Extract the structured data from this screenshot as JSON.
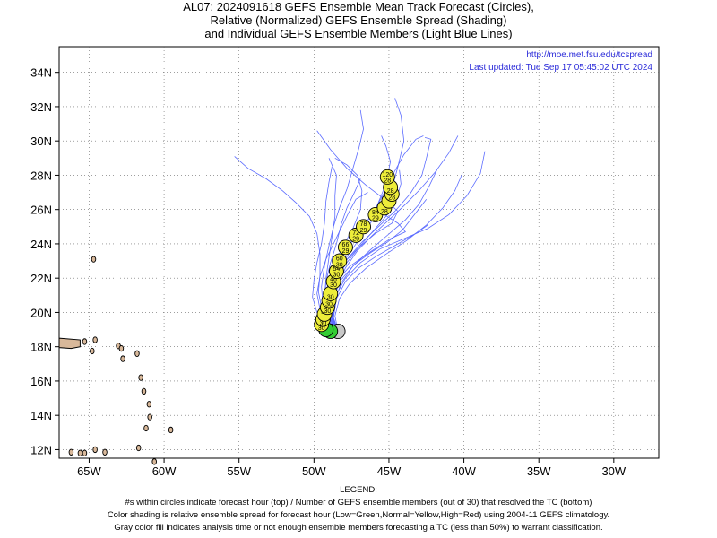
{
  "titles": {
    "line1": "AL07: 2024091618 GEFS Ensemble Mean Track Forecast (Circles),",
    "line2": "Relative (Normalized) GEFS Ensemble Spread (Shading)",
    "line3": "and Individual GEFS Ensemble Members (Light Blue Lines)"
  },
  "info": {
    "url": "http://moe.met.fsu.edu/tcspread",
    "updated": "Last updated: Tue Sep 17 05:45:02 UTC 2024"
  },
  "legend": {
    "heading": "LEGEND:",
    "line1": "#s within circles indicate forecast hour (top) / Number of GEFS ensemble members (out of 30) that resolved the TC (bottom)",
    "line2": "Color shading is relative ensemble spread for forecast hour (Low=Green,Normal=Yellow,High=Red) using 2004-11 GEFS climatology.",
    "line3": "Gray color fill indicates analysis time or not enough ensemble members forecasting a TC (less than 50%) to warrant classification."
  },
  "colors": {
    "low_spread": "#33cc33",
    "normal_spread": "#eded3a",
    "analysis_gray": "#c8c8c8",
    "member_lines": "#5b6bff",
    "land": "#d8b89a"
  },
  "chart_data": {
    "type": "scatter",
    "xlim": [
      -67,
      -27
    ],
    "ylim": [
      11.5,
      35.5
    ],
    "x_ticks": [
      -65,
      -60,
      -55,
      -50,
      -45,
      -40,
      -35,
      -30
    ],
    "x_tick_labels": [
      "65W",
      "60W",
      "55W",
      "50W",
      "45W",
      "40W",
      "35W",
      "30W"
    ],
    "y_ticks": [
      12,
      14,
      16,
      18,
      20,
      22,
      24,
      26,
      28,
      30,
      32,
      34
    ],
    "y_tick_labels": [
      "12N",
      "14N",
      "16N",
      "18N",
      "20N",
      "22N",
      "24N",
      "26N",
      "28N",
      "30N",
      "32N",
      "34N"
    ],
    "mean_track": [
      {
        "hour": "",
        "members": "",
        "lon": -48.4,
        "lat": 18.9,
        "shade": "gray"
      },
      {
        "hour": "",
        "members": "",
        "lon": -48.9,
        "lat": 18.9,
        "shade": "green"
      },
      {
        "hour": "",
        "members": "",
        "lon": -49.2,
        "lat": 19.0,
        "shade": "green"
      },
      {
        "hour": "",
        "members": "30",
        "lon": -49.5,
        "lat": 19.3,
        "shade": "yellow"
      },
      {
        "hour": "",
        "members": "30",
        "lon": -49.4,
        "lat": 19.6,
        "shade": "yellow"
      },
      {
        "hour": "36",
        "members": "",
        "lon": -49.3,
        "lat": 19.9,
        "shade": "yellow"
      },
      {
        "hour": "",
        "members": "30",
        "lon": -49.1,
        "lat": 20.3,
        "shade": "yellow"
      },
      {
        "hour": "",
        "members": "30",
        "lon": -49.0,
        "lat": 20.7,
        "shade": "yellow"
      },
      {
        "hour": "",
        "members": "30",
        "lon": -48.9,
        "lat": 21.1,
        "shade": "yellow"
      },
      {
        "hour": "48",
        "members": "30",
        "lon": -48.7,
        "lat": 21.8,
        "shade": "yellow"
      },
      {
        "hour": "54",
        "members": "30",
        "lon": -48.5,
        "lat": 22.4,
        "shade": "yellow"
      },
      {
        "hour": "60",
        "members": "30",
        "lon": -48.3,
        "lat": 23.0,
        "shade": "yellow"
      },
      {
        "hour": "66",
        "members": "29",
        "lon": -47.9,
        "lat": 23.8,
        "shade": "yellow"
      },
      {
        "hour": "72",
        "members": "29",
        "lon": -47.2,
        "lat": 24.5,
        "shade": "yellow"
      },
      {
        "hour": "78",
        "members": "29",
        "lon": -46.7,
        "lat": 25.0,
        "shade": "yellow"
      },
      {
        "hour": "84",
        "members": "29",
        "lon": -45.9,
        "lat": 25.7,
        "shade": "yellow"
      },
      {
        "hour": "",
        "members": "28",
        "lon": -45.3,
        "lat": 26.1,
        "shade": "yellow"
      },
      {
        "hour": "",
        "members": "",
        "lon": -45.0,
        "lat": 26.5,
        "shade": "yellow"
      },
      {
        "hour": "",
        "members": "28",
        "lon": -44.8,
        "lat": 26.9,
        "shade": "yellow"
      },
      {
        "hour": "",
        "members": "28",
        "lon": -44.9,
        "lat": 27.3,
        "shade": "yellow"
      },
      {
        "hour": "120",
        "members": "28",
        "lon": -45.1,
        "lat": 27.9,
        "shade": "yellow"
      }
    ],
    "ensemble_members": [
      [
        [
          -48.4,
          18.9
        ],
        [
          -48.9,
          19.6
        ],
        [
          -49.1,
          20.6
        ],
        [
          -48.9,
          21.8
        ],
        [
          -48.4,
          23.0
        ],
        [
          -47.5,
          24.1
        ],
        [
          -46.6,
          25.1
        ],
        [
          -45.8,
          26.2
        ],
        [
          -45.2,
          27.5
        ],
        [
          -44.9,
          28.8
        ],
        [
          -45.2,
          29.7
        ],
        [
          -45.5,
          30.3
        ]
      ],
      [
        [
          -48.4,
          18.9
        ],
        [
          -49.0,
          19.7
        ],
        [
          -49.3,
          20.8
        ],
        [
          -49.2,
          22.0
        ],
        [
          -49.0,
          23.2
        ],
        [
          -48.8,
          24.4
        ],
        [
          -48.6,
          25.6
        ],
        [
          -48.6,
          26.8
        ],
        [
          -48.5,
          28.0
        ],
        [
          -49.0,
          29.0
        ]
      ],
      [
        [
          -48.4,
          18.9
        ],
        [
          -48.8,
          19.6
        ],
        [
          -48.9,
          20.7
        ],
        [
          -48.6,
          21.9
        ],
        [
          -48.0,
          23.0
        ],
        [
          -47.2,
          24.0
        ],
        [
          -46.4,
          25.0
        ],
        [
          -45.6,
          26.0
        ],
        [
          -44.8,
          27.2
        ],
        [
          -44.4,
          28.5
        ],
        [
          -44.0,
          30.0
        ],
        [
          -44.2,
          31.5
        ],
        [
          -44.6,
          32.5
        ]
      ],
      [
        [
          -48.4,
          18.9
        ],
        [
          -49.1,
          19.5
        ],
        [
          -49.5,
          20.3
        ],
        [
          -49.7,
          21.2
        ],
        [
          -49.6,
          22.2
        ],
        [
          -49.6,
          23.4
        ],
        [
          -49.8,
          24.6
        ],
        [
          -50.3,
          25.6
        ],
        [
          -51.2,
          26.4
        ],
        [
          -52.1,
          27.1
        ],
        [
          -53.2,
          27.8
        ],
        [
          -54.4,
          28.4
        ],
        [
          -55.3,
          29.1
        ]
      ],
      [
        [
          -48.4,
          18.9
        ],
        [
          -48.7,
          19.7
        ],
        [
          -48.5,
          20.8
        ],
        [
          -47.9,
          21.8
        ],
        [
          -47.0,
          22.6
        ],
        [
          -45.8,
          23.3
        ],
        [
          -44.6,
          23.9
        ],
        [
          -43.4,
          24.5
        ],
        [
          -42.4,
          25.1
        ]
      ],
      [
        [
          -48.4,
          18.9
        ],
        [
          -48.8,
          19.8
        ],
        [
          -48.6,
          20.9
        ],
        [
          -47.9,
          22.0
        ],
        [
          -46.9,
          22.9
        ],
        [
          -45.6,
          23.7
        ],
        [
          -44.0,
          24.3
        ],
        [
          -42.4,
          24.9
        ],
        [
          -41.0,
          25.7
        ],
        [
          -39.8,
          26.8
        ],
        [
          -38.9,
          28.1
        ],
        [
          -38.6,
          29.4
        ]
      ],
      [
        [
          -48.4,
          18.9
        ],
        [
          -48.7,
          19.7
        ],
        [
          -48.6,
          20.7
        ],
        [
          -48.2,
          21.7
        ],
        [
          -47.4,
          22.7
        ],
        [
          -46.3,
          23.6
        ],
        [
          -45.1,
          24.5
        ],
        [
          -43.9,
          25.4
        ],
        [
          -43.0,
          26.3
        ],
        [
          -42.3,
          27.4
        ],
        [
          -41.8,
          28.3
        ]
      ],
      [
        [
          -48.4,
          18.9
        ],
        [
          -49.0,
          19.6
        ],
        [
          -49.2,
          20.6
        ],
        [
          -49.0,
          21.7
        ],
        [
          -48.5,
          22.8
        ],
        [
          -47.7,
          23.9
        ],
        [
          -46.8,
          24.9
        ],
        [
          -46.0,
          25.9
        ],
        [
          -45.3,
          27.0
        ],
        [
          -44.7,
          28.1
        ],
        [
          -44.0,
          29.2
        ],
        [
          -43.2,
          30.1
        ],
        [
          -42.7,
          30.3
        ]
      ],
      [
        [
          -48.4,
          18.9
        ],
        [
          -48.9,
          19.6
        ],
        [
          -49.2,
          20.5
        ],
        [
          -49.1,
          21.6
        ],
        [
          -48.7,
          22.7
        ],
        [
          -48.1,
          23.8
        ],
        [
          -47.4,
          24.9
        ],
        [
          -46.9,
          26.0
        ],
        [
          -46.8,
          27.1
        ],
        [
          -47.1,
          28.0
        ],
        [
          -47.8,
          28.6
        ],
        [
          -48.6,
          29.0
        ]
      ],
      [
        [
          -48.4,
          18.9
        ],
        [
          -49.2,
          19.4
        ],
        [
          -49.8,
          20.0
        ],
        [
          -50.1,
          20.9
        ],
        [
          -50.0,
          21.9
        ],
        [
          -49.8,
          22.9
        ],
        [
          -49.5,
          24.0
        ],
        [
          -49.3,
          25.2
        ],
        [
          -49.2,
          26.5
        ],
        [
          -49.0,
          27.6
        ],
        [
          -48.8,
          28.5
        ]
      ],
      [
        [
          -48.4,
          18.9
        ],
        [
          -48.8,
          19.8
        ],
        [
          -48.7,
          20.9
        ],
        [
          -48.2,
          21.9
        ],
        [
          -47.3,
          22.8
        ],
        [
          -46.2,
          23.5
        ],
        [
          -45.1,
          24.1
        ],
        [
          -44.1,
          24.8
        ],
        [
          -43.3,
          25.7
        ],
        [
          -42.5,
          26.6
        ]
      ],
      [
        [
          -48.4,
          18.9
        ],
        [
          -48.9,
          19.7
        ],
        [
          -49.0,
          20.7
        ],
        [
          -48.7,
          21.8
        ],
        [
          -48.0,
          22.9
        ],
        [
          -47.0,
          23.8
        ],
        [
          -45.9,
          24.6
        ],
        [
          -44.8,
          25.2
        ],
        [
          -44.4,
          25.9
        ],
        [
          -45.3,
          26.6
        ],
        [
          -46.5,
          27.4
        ],
        [
          -47.8,
          28.4
        ],
        [
          -48.9,
          29.5
        ],
        [
          -49.8,
          30.6
        ]
      ],
      [
        [
          -48.4,
          18.9
        ],
        [
          -48.8,
          19.7
        ],
        [
          -48.9,
          20.8
        ],
        [
          -48.5,
          21.8
        ],
        [
          -47.6,
          22.7
        ],
        [
          -46.3,
          23.5
        ],
        [
          -44.9,
          24.3
        ],
        [
          -43.9,
          24.7
        ],
        [
          -44.4,
          25.2
        ],
        [
          -45.3,
          25.7
        ]
      ],
      [
        [
          -48.4,
          18.9
        ],
        [
          -49.0,
          19.5
        ],
        [
          -49.4,
          20.4
        ],
        [
          -49.5,
          21.5
        ],
        [
          -49.3,
          22.7
        ],
        [
          -49.0,
          23.9
        ],
        [
          -48.7,
          25.0
        ],
        [
          -48.3,
          26.1
        ],
        [
          -47.8,
          27.2
        ],
        [
          -47.4,
          28.4
        ],
        [
          -47.0,
          29.6
        ],
        [
          -46.7,
          30.7
        ],
        [
          -46.9,
          31.8
        ]
      ],
      [
        [
          -48.4,
          18.9
        ],
        [
          -48.7,
          19.6
        ],
        [
          -48.7,
          20.6
        ],
        [
          -48.4,
          21.6
        ],
        [
          -47.9,
          22.6
        ],
        [
          -47.1,
          23.6
        ],
        [
          -46.1,
          24.5
        ],
        [
          -45.0,
          25.4
        ],
        [
          -43.9,
          26.3
        ],
        [
          -42.9,
          27.2
        ],
        [
          -41.9,
          28.2
        ],
        [
          -41.0,
          29.3
        ],
        [
          -40.4,
          30.3
        ]
      ],
      [
        [
          -48.4,
          18.9
        ],
        [
          -48.9,
          19.8
        ],
        [
          -49.0,
          20.9
        ],
        [
          -48.6,
          22.0
        ],
        [
          -47.8,
          23.1
        ],
        [
          -46.8,
          24.1
        ],
        [
          -45.7,
          25.0
        ],
        [
          -44.6,
          25.9
        ],
        [
          -43.6,
          26.9
        ],
        [
          -42.8,
          28.0
        ],
        [
          -42.5,
          29.0
        ],
        [
          -42.2,
          30.1
        ],
        [
          -42.6,
          30.2
        ]
      ],
      [
        [
          -48.4,
          18.9
        ],
        [
          -49.1,
          19.5
        ],
        [
          -49.6,
          20.2
        ],
        [
          -49.8,
          21.1
        ],
        [
          -49.6,
          22.1
        ],
        [
          -49.2,
          23.1
        ],
        [
          -48.7,
          24.0
        ],
        [
          -48.2,
          24.9
        ],
        [
          -47.7,
          25.8
        ],
        [
          -47.2,
          26.6
        ],
        [
          -46.4,
          27.0
        ]
      ],
      [
        [
          -48.4,
          18.9
        ],
        [
          -48.8,
          19.6
        ],
        [
          -48.9,
          20.6
        ],
        [
          -48.6,
          21.7
        ],
        [
          -47.9,
          22.8
        ],
        [
          -47.0,
          23.8
        ],
        [
          -46.0,
          24.8
        ],
        [
          -45.1,
          25.7
        ],
        [
          -44.5,
          26.6
        ],
        [
          -44.2,
          27.5
        ],
        [
          -44.3,
          28.3
        ]
      ],
      [
        [
          -48.4,
          18.9
        ],
        [
          -48.6,
          19.8
        ],
        [
          -48.3,
          20.8
        ],
        [
          -47.6,
          21.7
        ],
        [
          -46.5,
          22.6
        ],
        [
          -45.2,
          23.4
        ],
        [
          -43.8,
          24.2
        ],
        [
          -42.5,
          25.1
        ],
        [
          -41.4,
          26.1
        ],
        [
          -40.6,
          27.1
        ],
        [
          -40.1,
          28.1
        ]
      ],
      [
        [
          -48.4,
          18.9
        ],
        [
          -49.0,
          19.7
        ],
        [
          -49.3,
          20.7
        ],
        [
          -49.2,
          21.8
        ],
        [
          -48.9,
          22.9
        ],
        [
          -48.5,
          24.0
        ],
        [
          -48.2,
          25.1
        ],
        [
          -47.8,
          26.1
        ],
        [
          -47.3,
          27.0
        ],
        [
          -46.9,
          27.8
        ]
      ]
    ]
  }
}
